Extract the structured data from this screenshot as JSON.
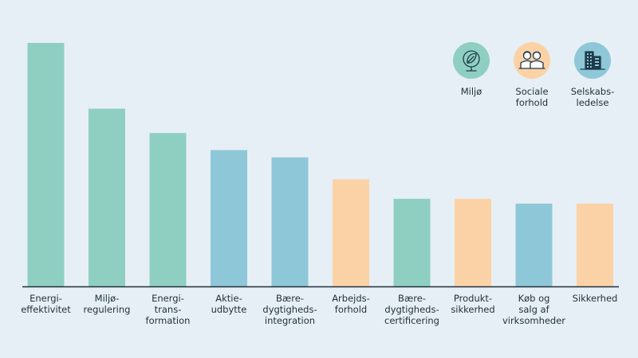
{
  "chart_data": {
    "type": "bar",
    "title": "",
    "xlabel": "",
    "ylabel": "",
    "ylim": [
      0,
      100
    ],
    "grid": false,
    "legend_placement": "top-right",
    "categories": [
      [
        "Energi-",
        "effektivitet"
      ],
      [
        "Miljø-",
        "regulering"
      ],
      [
        "Energi-",
        "trans-",
        "formation"
      ],
      [
        "Aktie-",
        "udbytte"
      ],
      [
        "Bære-",
        "dygtigheds-",
        "integration"
      ],
      [
        "Arbejds-",
        "forhold"
      ],
      [
        "Bære-",
        "dygtigheds-",
        "certificering"
      ],
      [
        "Produkt-",
        "sikkerhed"
      ],
      [
        "Køb og",
        "salg af",
        "virksomheder"
      ],
      [
        "Sikkerhed"
      ]
    ],
    "values": [
      100,
      73,
      63,
      56,
      53,
      44,
      36,
      36,
      34,
      34
    ],
    "bar_groups": [
      "miljo",
      "miljo",
      "miljo",
      "selskab",
      "selskab",
      "sociale",
      "miljo",
      "sociale",
      "selskab",
      "sociale"
    ],
    "groups": [
      {
        "key": "miljo",
        "label": [
          "Miljø"
        ],
        "color": "#8ecfc2",
        "icon_bg": "#8ecfc2",
        "icon": "globe-leaf-icon"
      },
      {
        "key": "sociale",
        "label": [
          "Sociale",
          "forhold"
        ],
        "color": "#fbd2a6",
        "icon_bg": "#fbd2a6",
        "icon": "people-icon"
      },
      {
        "key": "selskab",
        "label": [
          "Selskabs-",
          "ledelse"
        ],
        "color": "#8ec8d8",
        "icon_bg": "#8ec8d8",
        "icon": "building-icon"
      }
    ],
    "axis_color": "#1f2f3a"
  }
}
